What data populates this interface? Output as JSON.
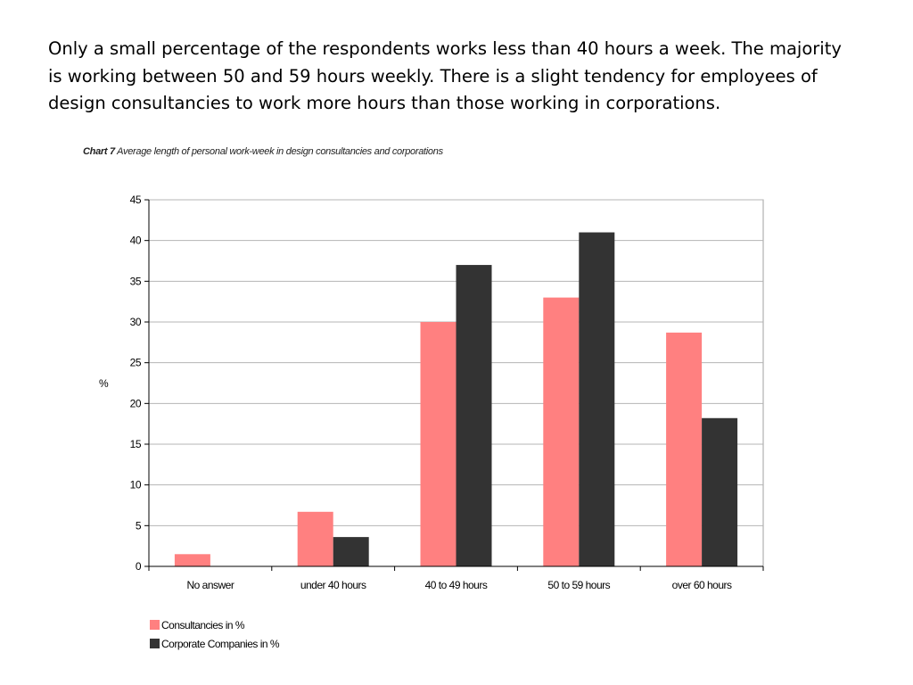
{
  "slide": {
    "intro_text": "Only a small percentage of the respondents works less than 40 hours a week. The majority is working between 50 and 59 hours weekly. There is a slight tendency for employees of design consultancies to work more hours than those working in corporations."
  },
  "chart_data": {
    "type": "bar",
    "title_label": "Chart 7",
    "title": "Average length of personal work-week in design consultancies and corporations",
    "xlabel": "",
    "ylabel": "%",
    "ylim": [
      0,
      45
    ],
    "yticks": [
      0,
      5,
      10,
      15,
      20,
      25,
      30,
      35,
      40,
      45
    ],
    "grid": true,
    "legend_position": "bottom-left",
    "categories": [
      "No answer",
      "under 40 hours",
      "40 to 49 hours",
      "50 to 59 hours",
      "over 60 hours"
    ],
    "series": [
      {
        "name": "Consultancies in %",
        "color": "#ff8080",
        "values": [
          1.5,
          6.7,
          30,
          33,
          28.7
        ]
      },
      {
        "name": "Corporate Companies in %",
        "color": "#333333",
        "values": [
          0,
          3.6,
          37,
          41,
          18.2
        ]
      }
    ]
  }
}
